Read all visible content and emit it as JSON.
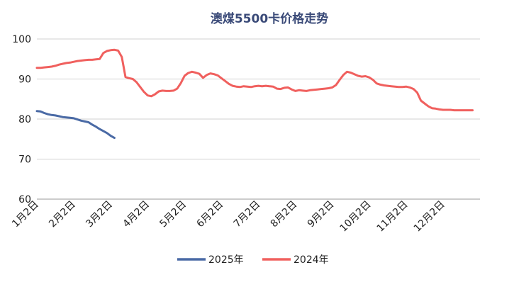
{
  "chart_data": {
    "type": "line",
    "title": "澳煤5500卡价格走势",
    "xlabel": "",
    "ylabel": "",
    "ylim": [
      60,
      100
    ],
    "yticks": [
      60,
      70,
      80,
      90,
      100
    ],
    "categories": [
      "1月2日",
      "2月2日",
      "3月2日",
      "4月2日",
      "5月2日",
      "6月2日",
      "7月2日",
      "8月2日",
      "9月2日",
      "10月2日",
      "11月2日",
      "12月2日"
    ],
    "grid": "horizontal",
    "legend": "bottom",
    "colors": {
      "2025年": "#4a6aa5",
      "2024年": "#f0605e"
    },
    "series": [
      {
        "name": "2025年",
        "color": "#4a6aa5",
        "x": [
          0.0,
          0.1,
          0.2,
          0.3,
          0.4,
          0.5,
          0.6,
          0.7,
          0.8,
          0.9,
          1.0,
          1.1,
          1.2,
          1.3,
          1.4,
          1.5,
          1.6,
          1.7,
          1.8,
          1.9,
          2.0,
          2.1
        ],
        "values": [
          82.0,
          81.9,
          81.5,
          81.2,
          81.0,
          80.9,
          80.7,
          80.5,
          80.4,
          80.3,
          80.2,
          79.9,
          79.6,
          79.4,
          79.2,
          78.6,
          78.1,
          77.5,
          77.0,
          76.5,
          75.8,
          75.3
        ]
      },
      {
        "name": "2024年",
        "color": "#f0605e",
        "x": [
          0.0,
          0.1,
          0.2,
          0.3,
          0.4,
          0.5,
          0.6,
          0.7,
          0.8,
          0.9,
          1.0,
          1.1,
          1.2,
          1.3,
          1.4,
          1.5,
          1.6,
          1.7,
          1.8,
          1.9,
          2.0,
          2.1,
          2.2,
          2.3,
          2.4,
          2.5,
          2.6,
          2.7,
          2.8,
          2.9,
          3.0,
          3.1,
          3.2,
          3.3,
          3.4,
          3.5,
          3.6,
          3.7,
          3.8,
          3.9,
          4.0,
          4.1,
          4.2,
          4.3,
          4.4,
          4.5,
          4.6,
          4.7,
          4.8,
          4.9,
          5.0,
          5.1,
          5.2,
          5.3,
          5.4,
          5.5,
          5.6,
          5.7,
          5.8,
          5.9,
          6.0,
          6.1,
          6.2,
          6.3,
          6.4,
          6.5,
          6.6,
          6.7,
          6.8,
          6.9,
          7.0,
          7.1,
          7.2,
          7.3,
          7.4,
          7.5,
          7.6,
          7.7,
          7.8,
          7.9,
          8.0,
          8.1,
          8.2,
          8.3,
          8.4,
          8.5,
          8.6,
          8.7,
          8.8,
          8.9,
          9.0,
          9.1,
          9.2,
          9.3,
          9.4,
          9.5,
          9.6,
          9.7,
          9.8,
          9.9,
          10.0,
          10.1,
          10.2,
          10.3,
          10.4,
          10.5,
          10.6,
          10.7,
          10.8,
          10.9,
          11.0,
          11.1,
          11.2,
          11.3,
          11.4,
          11.5,
          11.6,
          11.7,
          11.8
        ],
        "values": [
          92.8,
          92.8,
          92.9,
          93.0,
          93.1,
          93.3,
          93.6,
          93.8,
          94.0,
          94.1,
          94.3,
          94.5,
          94.6,
          94.7,
          94.8,
          94.8,
          94.9,
          95.0,
          96.5,
          97.0,
          97.2,
          97.3,
          97.1,
          95.5,
          90.5,
          90.2,
          90.0,
          89.2,
          88.0,
          86.8,
          85.9,
          85.7,
          86.2,
          86.9,
          87.1,
          87.0,
          87.0,
          87.1,
          87.6,
          89.0,
          90.8,
          91.5,
          91.8,
          91.6,
          91.3,
          90.3,
          91.0,
          91.4,
          91.2,
          90.9,
          90.2,
          89.5,
          88.8,
          88.3,
          88.1,
          88.0,
          88.2,
          88.1,
          88.0,
          88.2,
          88.3,
          88.2,
          88.3,
          88.2,
          88.1,
          87.6,
          87.5,
          87.8,
          87.9,
          87.4,
          87.0,
          87.2,
          87.1,
          87.0,
          87.2,
          87.3,
          87.4,
          87.5,
          87.6,
          87.7,
          87.9,
          88.5,
          89.8,
          91.0,
          91.8,
          91.6,
          91.2,
          90.8,
          90.6,
          90.7,
          90.4,
          89.8,
          88.9,
          88.6,
          88.4,
          88.3,
          88.2,
          88.1,
          88.0,
          88.0,
          88.1,
          87.9,
          87.5,
          86.6,
          84.6,
          83.9,
          83.2,
          82.7,
          82.6,
          82.4,
          82.3,
          82.3,
          82.3,
          82.2,
          82.2,
          82.2,
          82.2,
          82.2,
          82.2
        ]
      }
    ]
  }
}
